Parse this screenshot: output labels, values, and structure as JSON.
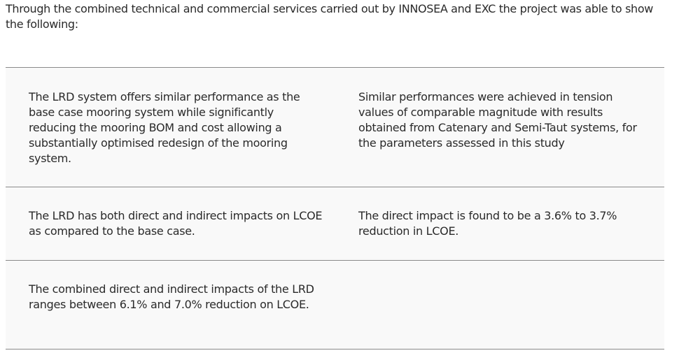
{
  "intro": "Through the combined technical and commercial services carried out by INNOSEA and EXC the project was able to show the following:",
  "findings": [
    {
      "left": "The LRD system offers similar performance as the base case mooring system while significantly reducing the mooring BOM and cost allowing a substantially optimised redesign of the mooring system.",
      "right": "Similar performances were achieved in tension values of comparable magnitude with results obtained from Catenary and Semi-Taut systems, for the parameters assessed in this study"
    },
    {
      "left": "The LRD has both direct and indirect impacts on LCOE as compared to the base case.",
      "right": "The direct impact is found to be a 3.6% to 3.7% reduction in LCOE."
    },
    {
      "left": "The combined direct and indirect impacts of the LRD ranges between 6.1% and 7.0% reduction on LCOE.",
      "right": ""
    }
  ]
}
